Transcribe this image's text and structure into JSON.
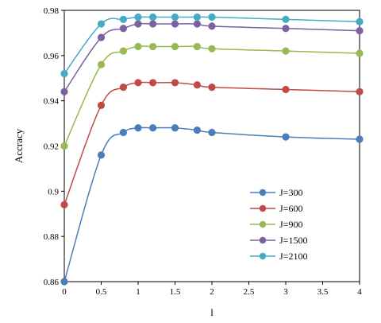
{
  "chart_data": {
    "type": "line",
    "title": "",
    "xlabel": "l",
    "ylabel": "Accracy",
    "xlim": [
      0,
      4
    ],
    "ylim": [
      0.86,
      0.98
    ],
    "xticks": [
      0,
      0.5,
      1,
      1.5,
      2,
      2.5,
      3,
      3.5,
      4
    ],
    "xtick_labels": [
      "0",
      "0.5",
      "1",
      "1.5",
      "2",
      "2.5",
      "3",
      "3.5",
      "4"
    ],
    "yticks": [
      0.86,
      0.88,
      0.9,
      0.92,
      0.94,
      0.96,
      0.98
    ],
    "ytick_labels": [
      "0.86",
      "0.88",
      "0.9",
      "0.92",
      "0.94",
      "0.96",
      "0.98"
    ],
    "grid": false,
    "legend_position": "lower-right",
    "x": [
      0,
      0.5,
      0.8,
      1,
      1.2,
      1.5,
      1.8,
      2,
      3,
      4
    ],
    "series": [
      {
        "name": "J=300",
        "color": "#4a7ebb",
        "values": [
          0.86,
          0.916,
          0.926,
          0.928,
          0.928,
          0.928,
          0.927,
          0.926,
          0.924,
          0.923
        ]
      },
      {
        "name": "J=600",
        "color": "#be4b48",
        "values": [
          0.894,
          0.938,
          0.946,
          0.948,
          0.948,
          0.948,
          0.947,
          0.946,
          0.945,
          0.944
        ]
      },
      {
        "name": "J=900",
        "color": "#98b954",
        "values": [
          0.92,
          0.956,
          0.962,
          0.964,
          0.964,
          0.964,
          0.964,
          0.963,
          0.962,
          0.961
        ]
      },
      {
        "name": "J=1500",
        "color": "#7d60a0",
        "values": [
          0.944,
          0.968,
          0.972,
          0.974,
          0.974,
          0.974,
          0.974,
          0.973,
          0.972,
          0.971
        ]
      },
      {
        "name": "J=2100",
        "color": "#46aac5",
        "values": [
          0.952,
          0.974,
          0.976,
          0.977,
          0.977,
          0.977,
          0.977,
          0.977,
          0.976,
          0.975
        ]
      }
    ]
  }
}
